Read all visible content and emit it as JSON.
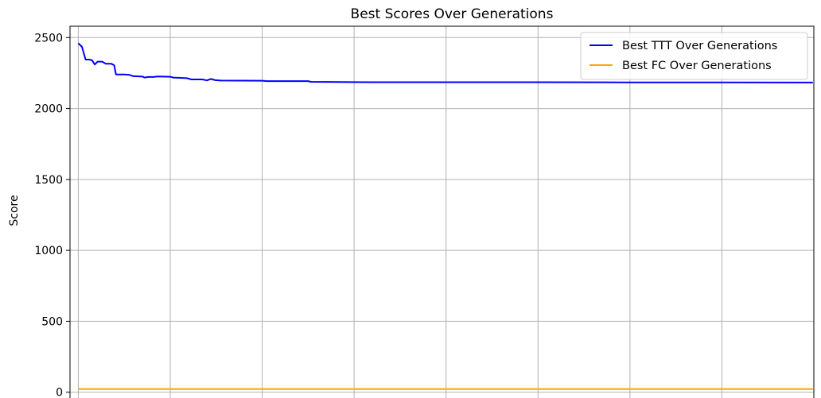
{
  "chart_data": {
    "type": "line",
    "title": "Best Scores Over Generations",
    "xlabel": "",
    "ylabel": "Score",
    "ylim": [
      -80,
      2580
    ],
    "xlim": [
      -9,
      800
    ],
    "x_gridlines": [
      0,
      100,
      200,
      300,
      400,
      500,
      600,
      700,
      800
    ],
    "y_ticks": [
      0,
      500,
      1000,
      1500,
      2000,
      2500
    ],
    "grid": true,
    "legend_position": "top-right",
    "series": [
      {
        "name": "Best TTT Over Generations",
        "color": "#0000ff",
        "points": [
          [
            0,
            2460
          ],
          [
            4,
            2435
          ],
          [
            8,
            2345
          ],
          [
            12,
            2345
          ],
          [
            15,
            2340
          ],
          [
            18,
            2310
          ],
          [
            21,
            2330
          ],
          [
            26,
            2330
          ],
          [
            30,
            2315
          ],
          [
            36,
            2315
          ],
          [
            39,
            2305
          ],
          [
            41,
            2240
          ],
          [
            50,
            2240
          ],
          [
            55,
            2238
          ],
          [
            60,
            2228
          ],
          [
            70,
            2225
          ],
          [
            72,
            2218
          ],
          [
            76,
            2222
          ],
          [
            82,
            2222
          ],
          [
            86,
            2226
          ],
          [
            100,
            2224
          ],
          [
            103,
            2218
          ],
          [
            118,
            2214
          ],
          [
            123,
            2205
          ],
          [
            135,
            2205
          ],
          [
            140,
            2198
          ],
          [
            144,
            2208
          ],
          [
            149,
            2200
          ],
          [
            155,
            2197
          ],
          [
            200,
            2196
          ],
          [
            205,
            2193
          ],
          [
            250,
            2193
          ],
          [
            253,
            2188
          ],
          [
            300,
            2186
          ],
          [
            320,
            2185
          ],
          [
            400,
            2185
          ],
          [
            500,
            2185
          ],
          [
            600,
            2184
          ],
          [
            700,
            2184
          ],
          [
            799,
            2183
          ]
        ]
      },
      {
        "name": "Best FC Over Generations",
        "color": "#ffa500",
        "points": [
          [
            0,
            22
          ],
          [
            200,
            22
          ],
          [
            400,
            22
          ],
          [
            600,
            22
          ],
          [
            799,
            22
          ]
        ]
      }
    ]
  }
}
